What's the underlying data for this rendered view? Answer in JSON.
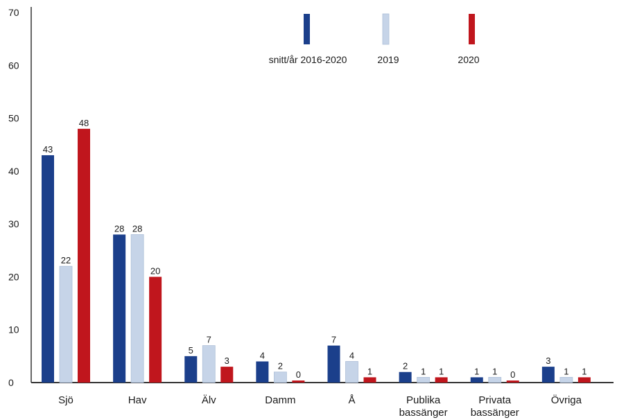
{
  "chart_data": {
    "type": "bar",
    "categories": [
      "Sjö",
      "Hav",
      "Älv",
      "Damm",
      "Å",
      "Publika bassänger",
      "Privata bassänger",
      "Övriga"
    ],
    "series": [
      {
        "name": "snitt/år 2016-2020",
        "color": "#1b3f8b",
        "values": [
          43,
          28,
          5,
          4,
          7,
          2,
          1,
          3
        ],
        "labels": [
          "43",
          "28",
          "5",
          "4",
          "7",
          "2",
          "1",
          "3"
        ]
      },
      {
        "name": "2019",
        "color": "#c6d4e8",
        "values": [
          22,
          28,
          7,
          2,
          4,
          1,
          1,
          1
        ],
        "labels": [
          "22",
          "28",
          "7",
          "2",
          "4",
          "1",
          "1",
          "1"
        ]
      },
      {
        "name": "2020",
        "color": "#c0161d",
        "values": [
          48,
          20,
          3,
          0,
          1,
          1,
          0,
          1
        ],
        "labels": [
          "48",
          "20",
          "3",
          "0",
          "1",
          "1",
          "0",
          "1"
        ]
      }
    ],
    "bar_heights_note": "",
    "ylim": [
      0,
      70
    ],
    "yticks": [
      "0",
      "10",
      "20",
      "30",
      "40",
      "50",
      "60",
      "70"
    ],
    "grid": false,
    "legend": "top-center",
    "xlabel": "",
    "ylabel": "",
    "title": ""
  }
}
